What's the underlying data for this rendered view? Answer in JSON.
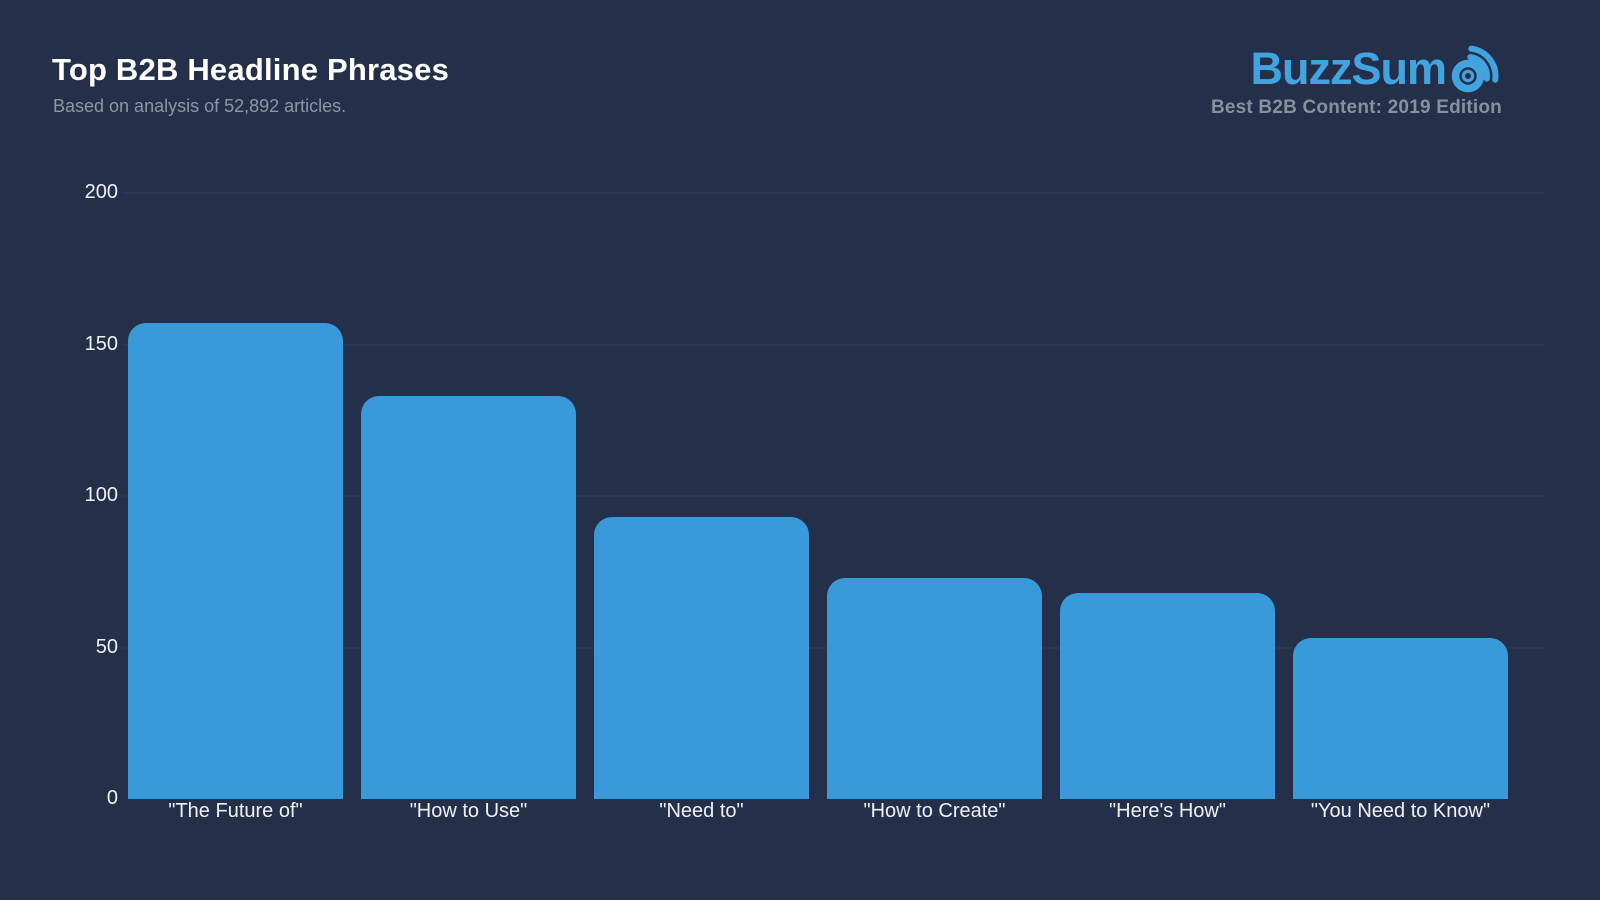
{
  "header": {
    "title": "Top B2B Headline Phrases",
    "subtitle": "Based on analysis of 52,892 articles."
  },
  "branding": {
    "brand": "BuzzSumo",
    "brand_prefix": "BuzzSum",
    "logo_o_icon": "bullseye-with-signal-waves",
    "tagline": "Best B2B Content: 2019 Edition",
    "logo_color": "#41a4e0"
  },
  "colors": {
    "background": "#243049",
    "bar": "#3a9ad9",
    "title_text": "#ffffff",
    "subtitle_text": "#8d96a4",
    "tagline_text": "#87909e",
    "axis_text": "#eef1f5"
  },
  "chart_data": {
    "type": "bar",
    "title": "Top B2B Headline Phrases",
    "subtitle": "Based on analysis of 52,892 articles.",
    "categories": [
      "\"The Future of\"",
      "\"How to Use\"",
      "\"Need to\"",
      "\"How to Create\"",
      "\"Here's How\"",
      "\"You Need to Know\""
    ],
    "values": [
      157,
      133,
      93,
      73,
      68,
      53
    ],
    "xlabel": "",
    "ylabel": "",
    "ylim": [
      0,
      200
    ],
    "yticks": [
      0,
      50,
      100,
      150,
      200
    ],
    "grid": "very faint horizontal gridlines at y ticks",
    "legend_position": "none",
    "bar_color": "#3a9ad9"
  }
}
